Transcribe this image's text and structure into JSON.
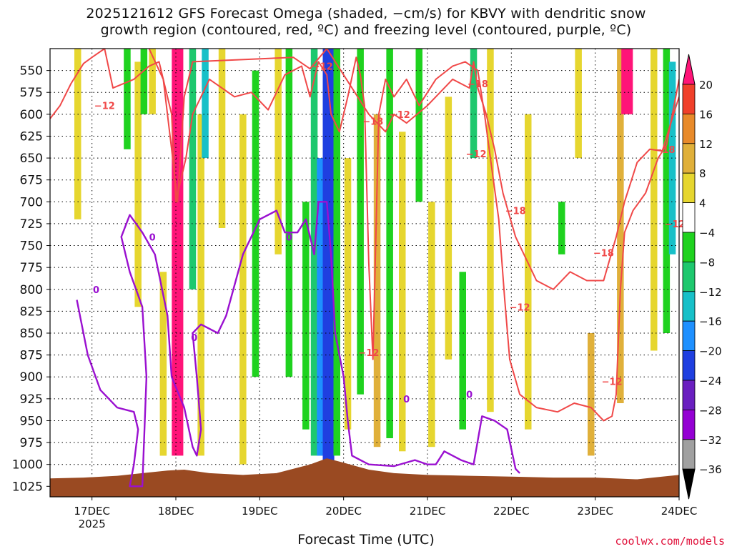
{
  "title_line1": "2025121612 GFS Forecast Omega (shaded, −cm/s) for KBVY with dendritic snow",
  "title_line2": "growth region (contoured, red, ºC) and freezing level (contoured, purple, ºC)",
  "credit": "coolwx.com/models",
  "colors": {
    "omega_ramp": [
      "#000000",
      "#a0a0a0",
      "#9400d3",
      "#6a1fc0",
      "#1f3fe0",
      "#1e90ff",
      "#17c0c8",
      "#1ec86e",
      "#1fd21f",
      "#ffffff",
      "#e6d62f",
      "#e0b03a",
      "#e88a2a",
      "#f0402a",
      "#ff1478"
    ],
    "dgz_contour": "#f04848",
    "freezing_contour": "#9a10d0",
    "terrain": "#9a4a22"
  },
  "chart_data": {
    "type": "heatmap",
    "xlabel": "Forecast Time (UTC)",
    "ylabel": "",
    "x_ticks": [
      "17DEC",
      "18DEC",
      "19DEC",
      "20DEC",
      "21DEC",
      "22DEC",
      "23DEC",
      "24DEC"
    ],
    "x_year": "2025",
    "xlim": [
      16.5,
      24.0
    ],
    "y_ticks": [
      "550",
      "575",
      "600",
      "625",
      "650",
      "675",
      "700",
      "725",
      "750",
      "775",
      "800",
      "825",
      "850",
      "875",
      "900",
      "925",
      "950",
      "975",
      "1000",
      "1025"
    ],
    "ylim_hpa": [
      525,
      1037
    ],
    "grid": true,
    "colorbar": {
      "ticks": [
        "20",
        "16",
        "12",
        "8",
        "4",
        "−4",
        "−8",
        "−12",
        "−16",
        "−20",
        "−24",
        "−28",
        "−32",
        "−36"
      ],
      "boundaries": [
        -40,
        -36,
        -32,
        -28,
        -24,
        -20,
        -16,
        -12,
        -8,
        -4,
        4,
        8,
        12,
        16,
        20,
        24
      ]
    },
    "omega_features": [
      {
        "time": 16.83,
        "p_top": 525,
        "p_bot": 720,
        "value": 5
      },
      {
        "time": 17.42,
        "p_top": 525,
        "p_bot": 640,
        "value": -7
      },
      {
        "time": 17.55,
        "p_top": 540,
        "p_bot": 820,
        "value": 5
      },
      {
        "time": 17.62,
        "p_top": 525,
        "p_bot": 600,
        "value": -7
      },
      {
        "time": 17.72,
        "p_top": 525,
        "p_bot": 600,
        "value": 5
      },
      {
        "time": 17.85,
        "p_top": 780,
        "p_bot": 990,
        "value": 6
      },
      {
        "time": 18.02,
        "p_top": 525,
        "p_bot": 990,
        "value": 20
      },
      {
        "time": 18.2,
        "p_top": 525,
        "p_bot": 800,
        "value": -10
      },
      {
        "time": 18.3,
        "p_top": 600,
        "p_bot": 990,
        "value": 6
      },
      {
        "time": 18.35,
        "p_top": 525,
        "p_bot": 650,
        "value": -13
      },
      {
        "time": 18.55,
        "p_top": 525,
        "p_bot": 730,
        "value": 5
      },
      {
        "time": 18.8,
        "p_top": 600,
        "p_bot": 1000,
        "value": 5
      },
      {
        "time": 18.95,
        "p_top": 550,
        "p_bot": 900,
        "value": -6
      },
      {
        "time": 19.22,
        "p_top": 525,
        "p_bot": 760,
        "value": 5
      },
      {
        "time": 19.35,
        "p_top": 525,
        "p_bot": 900,
        "value": -7
      },
      {
        "time": 19.55,
        "p_top": 700,
        "p_bot": 960,
        "value": -8
      },
      {
        "time": 19.65,
        "p_top": 525,
        "p_bot": 990,
        "value": -12
      },
      {
        "time": 19.75,
        "p_top": 650,
        "p_bot": 990,
        "value": -17
      },
      {
        "time": 19.82,
        "p_top": 525,
        "p_bot": 1000,
        "value": -24
      },
      {
        "time": 19.92,
        "p_top": 525,
        "p_bot": 990,
        "value": -8
      },
      {
        "time": 20.05,
        "p_top": 650,
        "p_bot": 960,
        "value": 6
      },
      {
        "time": 20.2,
        "p_top": 525,
        "p_bot": 920,
        "value": -7
      },
      {
        "time": 20.4,
        "p_top": 600,
        "p_bot": 980,
        "value": 8
      },
      {
        "time": 20.55,
        "p_top": 525,
        "p_bot": 970,
        "value": -7
      },
      {
        "time": 20.7,
        "p_top": 620,
        "p_bot": 985,
        "value": 6
      },
      {
        "time": 20.9,
        "p_top": 525,
        "p_bot": 700,
        "value": -7
      },
      {
        "time": 21.05,
        "p_top": 700,
        "p_bot": 980,
        "value": 6
      },
      {
        "time": 21.25,
        "p_top": 580,
        "p_bot": 880,
        "value": 5
      },
      {
        "time": 21.42,
        "p_top": 780,
        "p_bot": 960,
        "value": -8
      },
      {
        "time": 21.55,
        "p_top": 525,
        "p_bot": 650,
        "value": -10
      },
      {
        "time": 21.75,
        "p_top": 525,
        "p_bot": 940,
        "value": 5
      },
      {
        "time": 22.2,
        "p_top": 600,
        "p_bot": 960,
        "value": 5
      },
      {
        "time": 22.6,
        "p_top": 700,
        "p_bot": 760,
        "value": -8
      },
      {
        "time": 22.8,
        "p_top": 525,
        "p_bot": 650,
        "value": 5
      },
      {
        "time": 22.95,
        "p_top": 850,
        "p_bot": 990,
        "value": 8
      },
      {
        "time": 23.3,
        "p_top": 525,
        "p_bot": 930,
        "value": 10
      },
      {
        "time": 23.38,
        "p_top": 525,
        "p_bot": 600,
        "value": 20
      },
      {
        "time": 23.7,
        "p_top": 525,
        "p_bot": 870,
        "value": 6
      },
      {
        "time": 23.85,
        "p_top": 525,
        "p_bot": 850,
        "value": -8
      },
      {
        "time": 23.92,
        "p_top": 540,
        "p_bot": 760,
        "value": -14
      }
    ],
    "dgz_minus12": [
      [
        16.5,
        605
      ],
      [
        16.62,
        590
      ],
      [
        16.75,
        565
      ],
      [
        16.9,
        542
      ],
      [
        17.0,
        535
      ],
      [
        17.15,
        525
      ],
      [
        17.25,
        570
      ],
      [
        17.5,
        560
      ],
      [
        17.68,
        545
      ],
      [
        17.8,
        540
      ],
      [
        17.95,
        600
      ],
      [
        18.0,
        700
      ],
      [
        18.12,
        650
      ],
      [
        18.2,
        600
      ],
      [
        18.4,
        560
      ],
      [
        18.7,
        580
      ],
      [
        18.9,
        575
      ],
      [
        19.1,
        595
      ],
      [
        19.3,
        555
      ],
      [
        19.5,
        545
      ],
      [
        19.6,
        580
      ],
      [
        19.7,
        540
      ],
      [
        19.8,
        555
      ],
      [
        19.85,
        600
      ],
      [
        19.95,
        620
      ],
      [
        20.05,
        580
      ],
      [
        20.15,
        535
      ],
      [
        20.2,
        555
      ],
      [
        20.25,
        590
      ],
      [
        20.3,
        770
      ],
      [
        20.35,
        880
      ],
      [
        20.42,
        600
      ],
      [
        20.5,
        560
      ],
      [
        20.6,
        580
      ],
      [
        20.75,
        560
      ],
      [
        20.9,
        590
      ],
      [
        21.1,
        560
      ],
      [
        21.3,
        545
      ],
      [
        21.45,
        540
      ],
      [
        21.6,
        550
      ],
      [
        21.68,
        600
      ],
      [
        21.75,
        650
      ],
      [
        21.85,
        720
      ],
      [
        21.92,
        810
      ],
      [
        21.98,
        880
      ],
      [
        22.1,
        920
      ],
      [
        22.3,
        935
      ],
      [
        22.55,
        940
      ],
      [
        22.75,
        930
      ],
      [
        22.95,
        935
      ],
      [
        23.1,
        950
      ],
      [
        23.2,
        945
      ],
      [
        23.25,
        920
      ],
      [
        23.3,
        800
      ],
      [
        23.35,
        735
      ],
      [
        23.45,
        710
      ],
      [
        23.6,
        690
      ],
      [
        23.75,
        650
      ],
      [
        23.85,
        635
      ],
      [
        23.92,
        600
      ],
      [
        24.0,
        560
      ]
    ],
    "dgz_minus18": [
      [
        17.68,
        525
      ],
      [
        17.85,
        560
      ],
      [
        17.95,
        640
      ],
      [
        18.02,
        700
      ],
      [
        18.1,
        580
      ],
      [
        18.2,
        540
      ],
      [
        19.4,
        535
      ],
      [
        19.6,
        548
      ],
      [
        19.8,
        525
      ],
      [
        20.3,
        600
      ],
      [
        20.5,
        620
      ],
      [
        20.6,
        600
      ],
      [
        20.75,
        610
      ],
      [
        21.0,
        590
      ],
      [
        21.3,
        560
      ],
      [
        21.5,
        570
      ],
      [
        21.55,
        540
      ],
      [
        21.6,
        570
      ],
      [
        21.7,
        600
      ],
      [
        21.8,
        640
      ],
      [
        21.9,
        690
      ],
      [
        22.05,
        740
      ],
      [
        22.3,
        790
      ],
      [
        22.5,
        800
      ],
      [
        22.7,
        780
      ],
      [
        22.9,
        790
      ],
      [
        23.1,
        790
      ],
      [
        23.25,
        740
      ],
      [
        23.35,
        700
      ],
      [
        23.5,
        655
      ],
      [
        23.65,
        640
      ],
      [
        23.8,
        642
      ],
      [
        23.95,
        595
      ],
      [
        24.0,
        580
      ]
    ],
    "freezing_level_0c": [
      [
        16.82,
        812
      ],
      [
        16.95,
        875
      ],
      [
        17.1,
        915
      ],
      [
        17.3,
        935
      ],
      [
        17.5,
        940
      ],
      [
        17.55,
        960
      ],
      [
        17.5,
        1000
      ],
      [
        17.45,
        1025
      ],
      [
        17.6,
        1025
      ],
      [
        17.65,
        900
      ],
      [
        17.6,
        820
      ],
      [
        17.45,
        780
      ],
      [
        17.35,
        740
      ],
      [
        17.45,
        715
      ],
      [
        17.6,
        735
      ],
      [
        17.75,
        760
      ],
      [
        17.9,
        830
      ],
      [
        17.95,
        900
      ],
      [
        18.1,
        935
      ],
      [
        18.2,
        980
      ],
      [
        18.25,
        990
      ],
      [
        18.3,
        960
      ],
      [
        18.25,
        900
      ],
      [
        18.2,
        850
      ],
      [
        18.3,
        840
      ],
      [
        18.5,
        850
      ],
      [
        18.6,
        830
      ],
      [
        18.8,
        760
      ],
      [
        19.0,
        720
      ],
      [
        19.2,
        710
      ],
      [
        19.3,
        735
      ],
      [
        19.45,
        735
      ],
      [
        19.55,
        720
      ],
      [
        19.65,
        760
      ],
      [
        19.7,
        700
      ],
      [
        19.8,
        700
      ],
      [
        19.85,
        760
      ],
      [
        19.9,
        850
      ],
      [
        20.0,
        900
      ],
      [
        20.05,
        950
      ],
      [
        20.1,
        990
      ],
      [
        20.3,
        1000
      ],
      [
        20.6,
        1002
      ],
      [
        20.85,
        995
      ],
      [
        21.0,
        1000
      ],
      [
        21.1,
        1000
      ],
      [
        21.2,
        985
      ],
      [
        21.4,
        995
      ],
      [
        21.55,
        1000
      ],
      [
        21.65,
        945
      ],
      [
        21.8,
        950
      ],
      [
        21.95,
        960
      ],
      [
        22.05,
        1005
      ],
      [
        22.1,
        1010
      ]
    ],
    "terrain_surface_hpa": [
      [
        16.5,
        1016
      ],
      [
        16.9,
        1015
      ],
      [
        17.3,
        1013
      ],
      [
        17.6,
        1010
      ],
      [
        17.9,
        1007
      ],
      [
        18.1,
        1006
      ],
      [
        18.4,
        1010
      ],
      [
        18.8,
        1012
      ],
      [
        19.2,
        1010
      ],
      [
        19.6,
        1000
      ],
      [
        19.8,
        993
      ],
      [
        20.0,
        998
      ],
      [
        20.3,
        1006
      ],
      [
        20.6,
        1010
      ],
      [
        21.0,
        1012
      ],
      [
        21.5,
        1013
      ],
      [
        22.0,
        1014
      ],
      [
        22.5,
        1015
      ],
      [
        23.0,
        1015
      ],
      [
        23.5,
        1017
      ],
      [
        23.8,
        1014
      ],
      [
        24.0,
        1012
      ]
    ],
    "contour_labels": [
      {
        "text": "−12",
        "time": 17.15,
        "p": 590,
        "kind": "dgz"
      },
      {
        "text": "−12",
        "time": 19.75,
        "p": 545,
        "kind": "dgz"
      },
      {
        "text": "−18",
        "time": 20.35,
        "p": 608,
        "kind": "dgz"
      },
      {
        "text": "−12",
        "time": 20.67,
        "p": 600,
        "kind": "dgz"
      },
      {
        "text": "−18",
        "time": 21.6,
        "p": 565,
        "kind": "dgz"
      },
      {
        "text": "−12",
        "time": 21.58,
        "p": 645,
        "kind": "dgz"
      },
      {
        "text": "−18",
        "time": 22.05,
        "p": 710,
        "kind": "dgz"
      },
      {
        "text": "−12",
        "time": 22.1,
        "p": 820,
        "kind": "dgz"
      },
      {
        "text": "−18",
        "time": 23.1,
        "p": 758,
        "kind": "dgz"
      },
      {
        "text": "−12",
        "time": 20.3,
        "p": 872,
        "kind": "dgz"
      },
      {
        "text": "−12",
        "time": 23.2,
        "p": 905,
        "kind": "dgz"
      },
      {
        "text": "−18",
        "time": 23.83,
        "p": 640,
        "kind": "dgz"
      },
      {
        "text": "−12",
        "time": 23.95,
        "p": 725,
        "kind": "dgz"
      },
      {
        "text": "0",
        "time": 17.05,
        "p": 800,
        "kind": "frz"
      },
      {
        "text": "0",
        "time": 17.72,
        "p": 740,
        "kind": "frz"
      },
      {
        "text": "0",
        "time": 18.22,
        "p": 855,
        "kind": "frz"
      },
      {
        "text": "0",
        "time": 19.35,
        "p": 740,
        "kind": "frz"
      },
      {
        "text": "0",
        "time": 20.75,
        "p": 925,
        "kind": "frz"
      },
      {
        "text": "0",
        "time": 21.5,
        "p": 920,
        "kind": "frz"
      }
    ]
  }
}
